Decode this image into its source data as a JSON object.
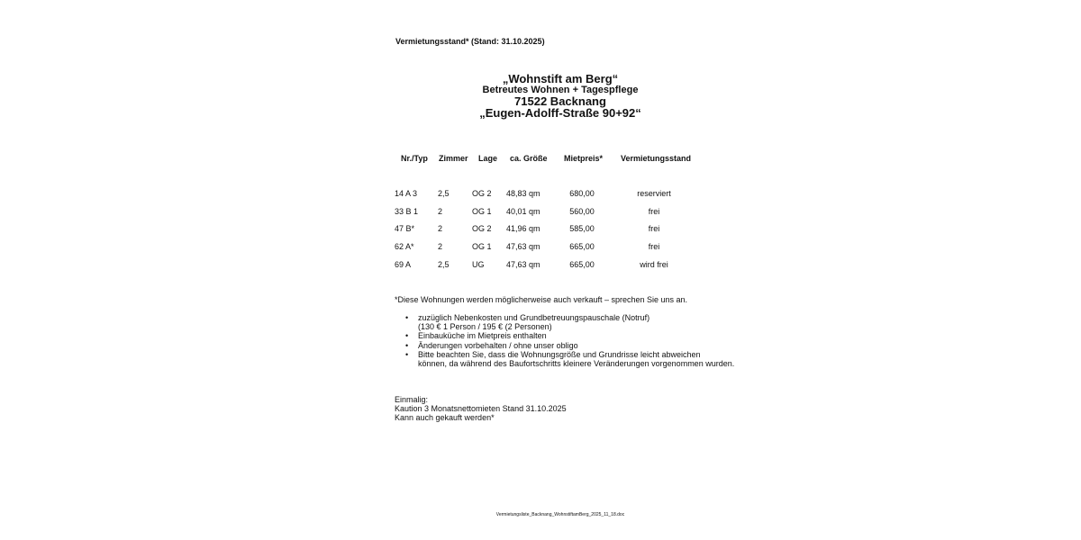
{
  "header": {
    "status_line": "Vermietungsstand* (Stand: 31.10.2025)"
  },
  "title": {
    "name": "„Wohnstift am Berg“",
    "subtitle": "Betreutes Wohnen + Tagespflege",
    "city": "71522 Backnang",
    "street": "„Eugen-Adolff-Straße 90+92“"
  },
  "table": {
    "columns": [
      "Nr./Typ",
      "Zimmer",
      "Lage",
      "ca. Größe",
      "Mietpreis*",
      "Vermietungsstand"
    ],
    "rows": [
      [
        "14 A 3",
        "2,5",
        "OG 2",
        "48,83 qm",
        "680,00",
        "reserviert"
      ],
      [
        "33 B 1",
        "2",
        "OG 1",
        "40,01 qm",
        "560,00",
        "frei"
      ],
      [
        "47 B*",
        "2",
        "OG 2",
        "41,96 qm",
        "585,00",
        "frei"
      ],
      [
        "62 A*",
        "2",
        "OG 1",
        "47,63 qm",
        "665,00",
        "frei"
      ],
      [
        "69 A",
        "2,5",
        "UG",
        "47,63 qm",
        "665,00",
        "wird frei"
      ]
    ]
  },
  "note": "*Diese Wohnungen werden möglicherweise auch verkauft – sprechen Sie uns an.",
  "bullets": [
    [
      "zuzüglich Nebenkosten und Grundbetreuungspauschale (Notruf)",
      "(130 € 1 Person / 195 € (2 Personen)"
    ],
    [
      "Einbauküche im Mietpreis enthalten"
    ],
    [
      "Änderungen vorbehalten / ohne unser obligo"
    ],
    [
      "Bitte beachten Sie, dass die Wohnungsgröße und Grundrisse leicht abweichen",
      "können, da während des Baufortschritts kleinere Veränderungen vorgenommen wurden."
    ]
  ],
  "onetime": [
    "Einmalig:",
    "Kaution 3 Monatsnettomieten Stand 31.10.2025",
    "Kann auch gekauft werden*"
  ],
  "footer": "Vermietungsliste_Backnang_WohnstiftamBerg_2025_11_18.doc"
}
